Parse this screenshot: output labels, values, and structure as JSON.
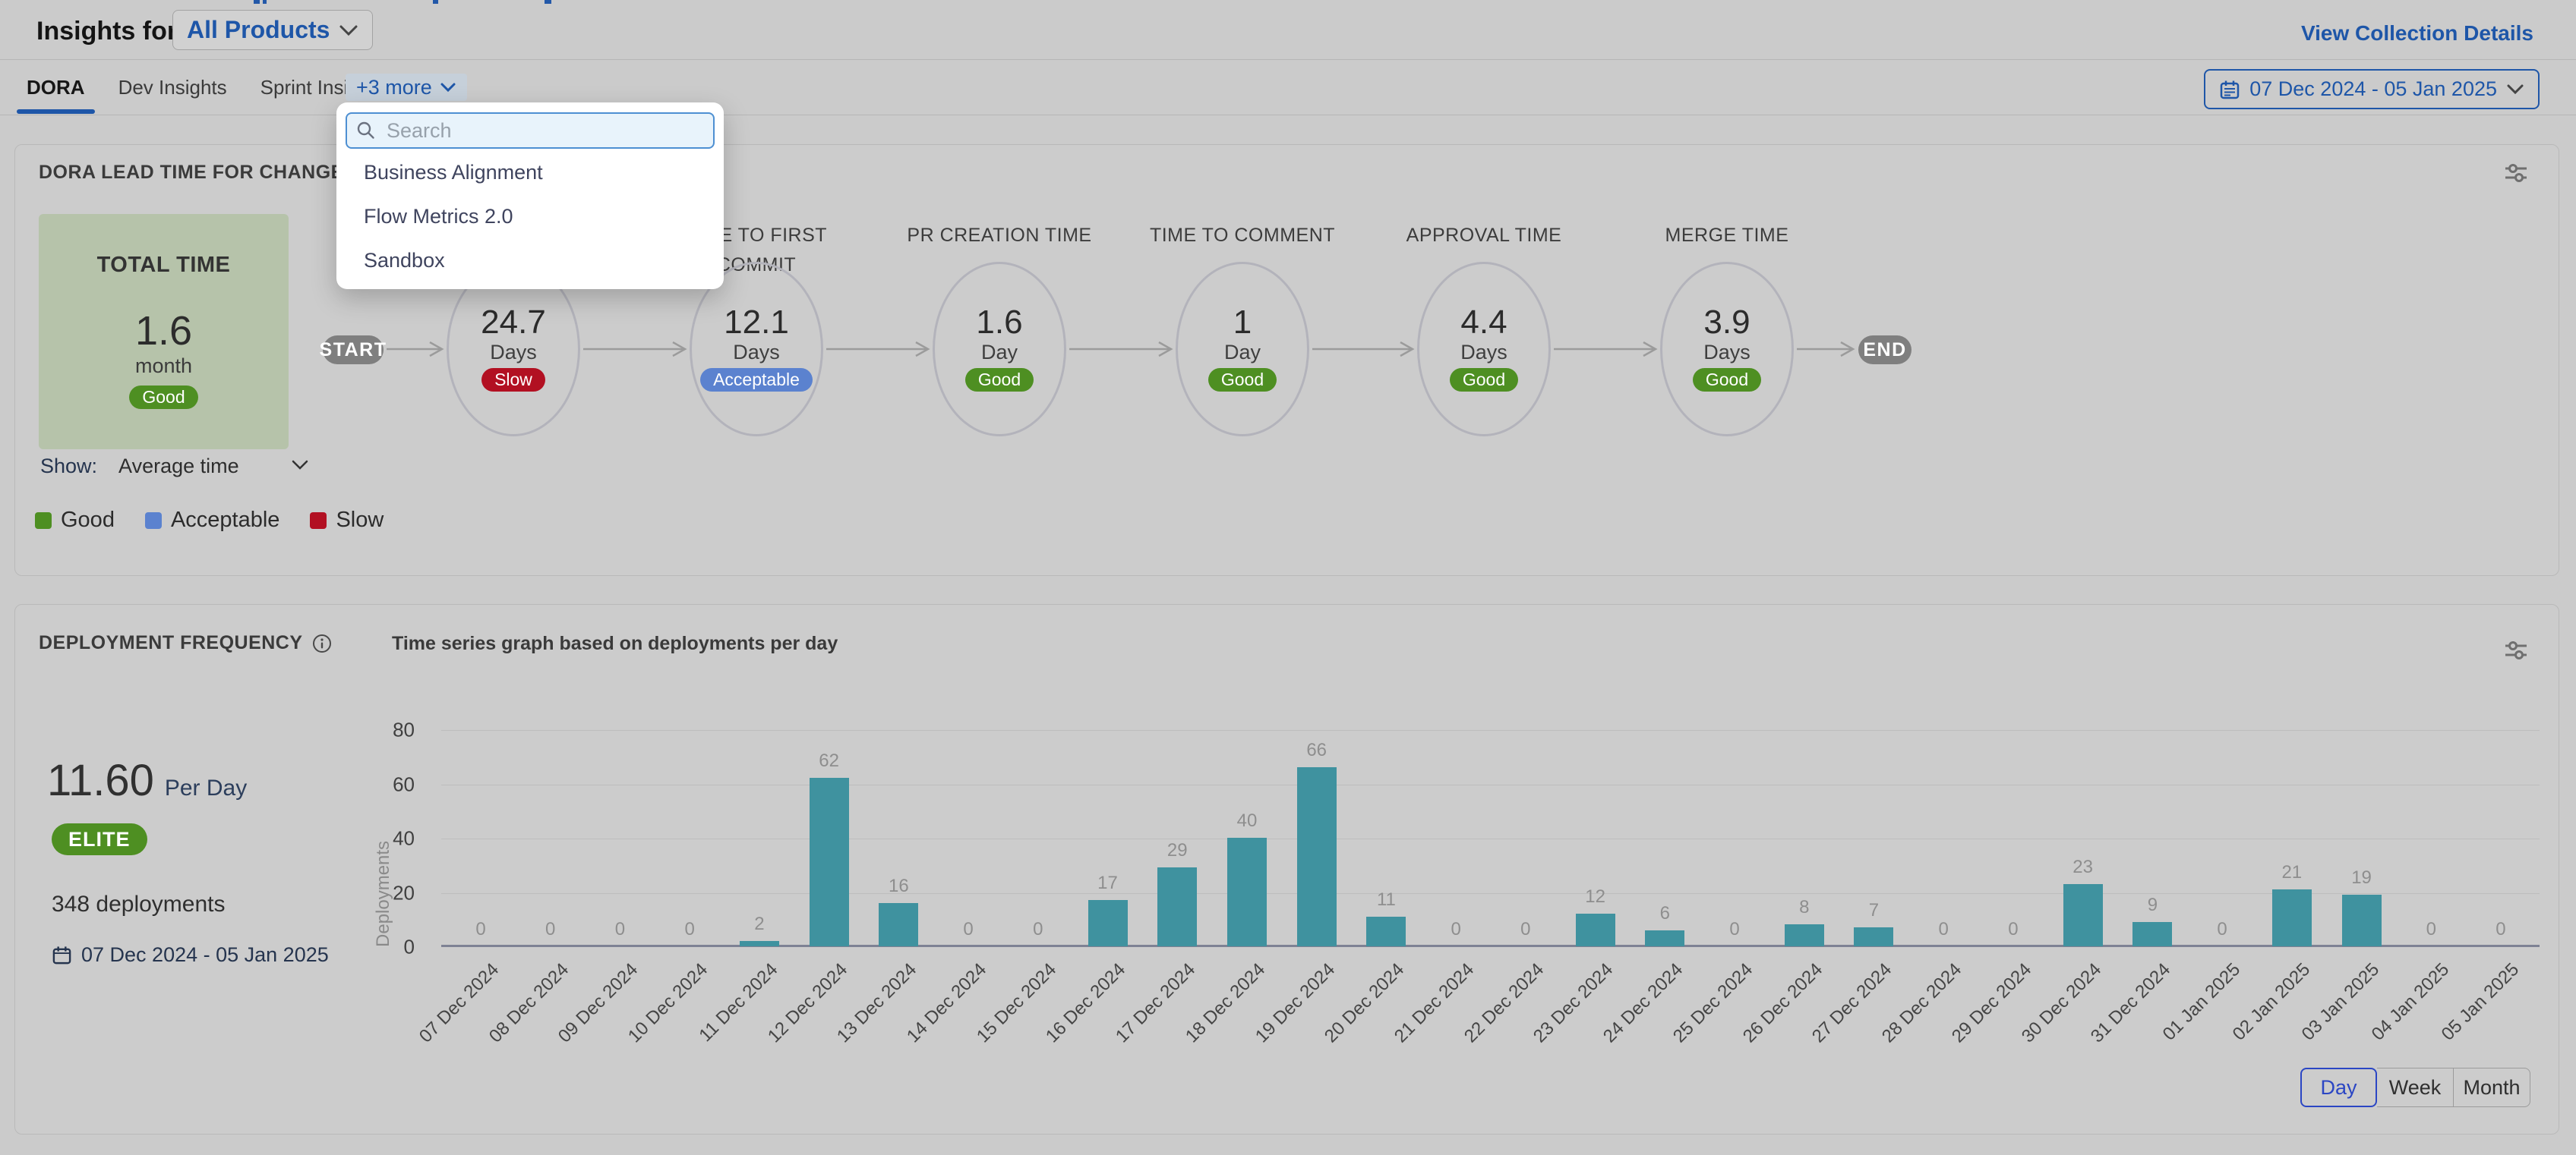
{
  "colors": {
    "accent_blue": "#1e56a8",
    "day_active_blue": "#2b46c4",
    "bar_teal": "#3f929f",
    "total_box_green": "#b6c3aa",
    "flow_pill_gray": "#7f7f7f",
    "status": {
      "Good": "#4e8f22",
      "Acceptable": "#5b82cf",
      "Slow": "#b21022"
    }
  },
  "icons": {
    "search": "magnifier",
    "calendar": "calendar",
    "settings": "sliders",
    "info": "info-circle",
    "chevron": "chevron-down"
  },
  "header": {
    "insights_label": "Insights for",
    "product": "All Products",
    "view_details": "View Collection Details"
  },
  "tabbar": {
    "tabs": [
      "DORA",
      "Dev Insights",
      "Sprint Insights"
    ],
    "active_tab": "DORA",
    "more_label": "+3 more",
    "date_range": "07 Dec 2024 - 05 Jan 2025"
  },
  "more_dropdown": {
    "search_placeholder": "Search",
    "items": [
      "Business Alignment",
      "Flow Metrics 2.0",
      "Sandbox"
    ]
  },
  "lead_time_card": {
    "title": "DORA LEAD TIME FOR CHANGES REP",
    "total": {
      "label": "TOTAL TIME",
      "value": "1.6",
      "unit": "month",
      "status": "Good"
    },
    "start_label": "START",
    "end_label": "END",
    "stages": [
      {
        "label": "",
        "label2": "",
        "value": "24.7",
        "unit": "Days",
        "status": "Slow"
      },
      {
        "label": "TIME TO FIRST",
        "label2": "COMMIT",
        "value": "12.1",
        "unit": "Days",
        "status": "Acceptable"
      },
      {
        "label": "PR CREATION TIME",
        "label2": "",
        "value": "1.6",
        "unit": "Day",
        "status": "Good"
      },
      {
        "label": "TIME TO COMMENT",
        "label2": "",
        "value": "1",
        "unit": "Day",
        "status": "Good"
      },
      {
        "label": "APPROVAL TIME",
        "label2": "",
        "value": "4.4",
        "unit": "Days",
        "status": "Good"
      },
      {
        "label": "MERGE TIME",
        "label2": "",
        "value": "3.9",
        "unit": "Days",
        "status": "Good"
      }
    ],
    "show_label": "Show:",
    "show_value": "Average time",
    "legend": [
      "Good",
      "Acceptable",
      "Slow"
    ]
  },
  "deployment_card": {
    "title": "DEPLOYMENT FREQUENCY",
    "chart_title": "Time series graph based on deployments per day",
    "rate_value": "11.60",
    "rate_unit": "Per Day",
    "tier_badge": "ELITE",
    "total_label": "348 deployments",
    "date_range": "07 Dec 2024 - 05 Jan 2025",
    "granularity": [
      "Day",
      "Week",
      "Month"
    ],
    "active_granularity": "Day",
    "chart_data": {
      "type": "bar",
      "title": "Time series graph based on deployments per day",
      "ylabel": "Deployments",
      "ylim": [
        0,
        80
      ],
      "yticks": [
        0,
        20,
        40,
        60,
        80
      ],
      "grid": true,
      "legend_position": "none",
      "categories": [
        "07 Dec 2024",
        "08 Dec 2024",
        "09 Dec 2024",
        "10 Dec 2024",
        "11 Dec 2024",
        "12 Dec 2024",
        "13 Dec 2024",
        "14 Dec 2024",
        "15 Dec 2024",
        "16 Dec 2024",
        "17 Dec 2024",
        "18 Dec 2024",
        "19 Dec 2024",
        "20 Dec 2024",
        "21 Dec 2024",
        "22 Dec 2024",
        "23 Dec 2024",
        "24 Dec 2024",
        "25 Dec 2024",
        "26 Dec 2024",
        "27 Dec 2024",
        "28 Dec 2024",
        "29 Dec 2024",
        "30 Dec 2024",
        "31 Dec 2024",
        "01 Jan 2025",
        "02 Jan 2025",
        "03 Jan 2025",
        "04 Jan 2025",
        "05 Jan 2025"
      ],
      "values": [
        0,
        0,
        0,
        0,
        2,
        62,
        16,
        0,
        0,
        17,
        29,
        40,
        66,
        11,
        0,
        0,
        12,
        6,
        0,
        8,
        7,
        0,
        0,
        23,
        9,
        0,
        21,
        19,
        0,
        0
      ]
    }
  }
}
